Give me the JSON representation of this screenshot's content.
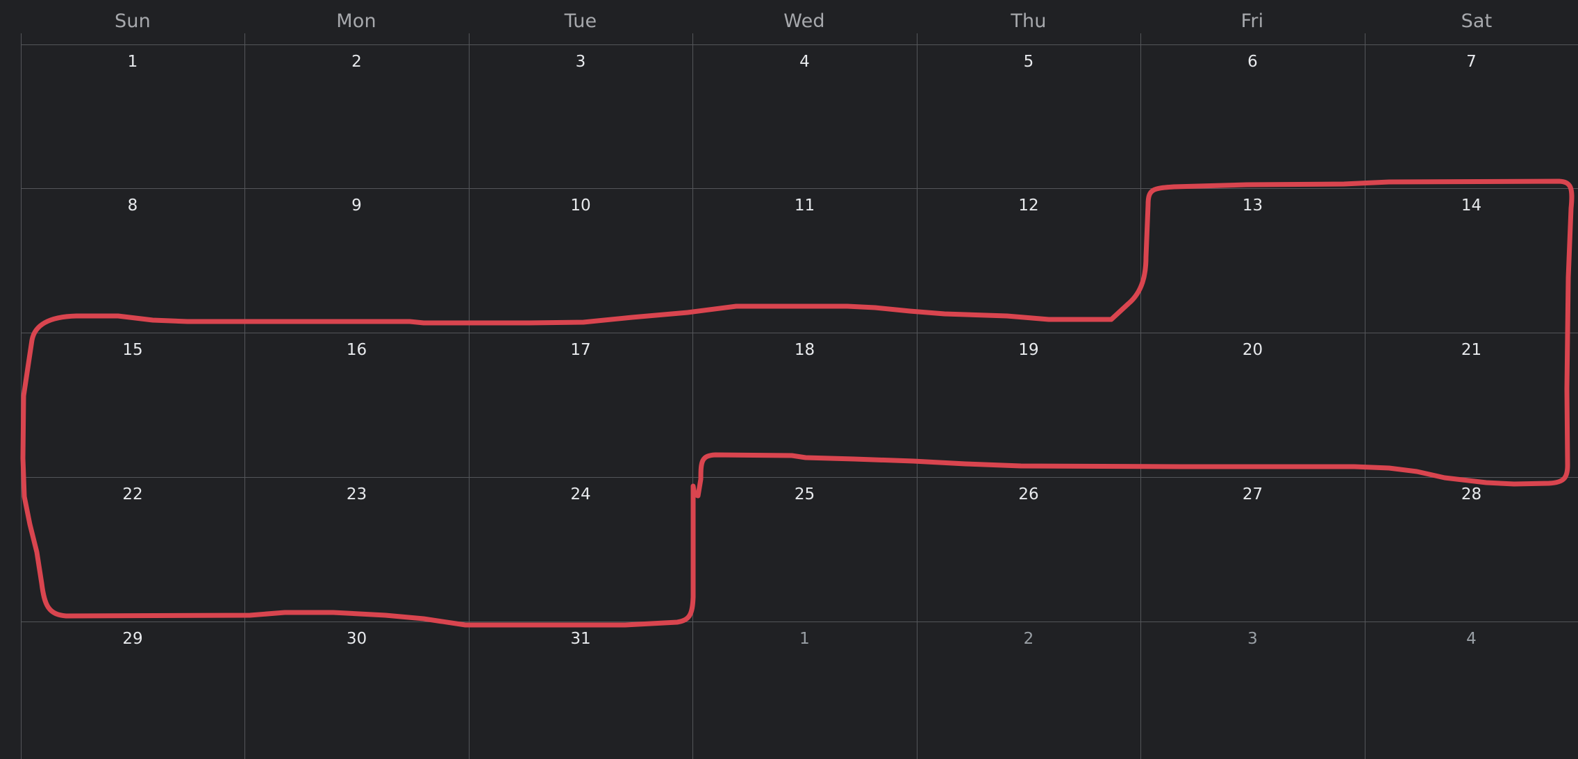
{
  "weekdays": [
    "Sun",
    "Mon",
    "Tue",
    "Wed",
    "Thu",
    "Fri",
    "Sat"
  ],
  "weeks": [
    [
      {
        "day": "1"
      },
      {
        "day": "2"
      },
      {
        "day": "3"
      },
      {
        "day": "4"
      },
      {
        "day": "5"
      },
      {
        "day": "6"
      },
      {
        "day": "7"
      }
    ],
    [
      {
        "day": "8"
      },
      {
        "day": "9"
      },
      {
        "day": "10"
      },
      {
        "day": "11"
      },
      {
        "day": "12"
      },
      {
        "day": "13"
      },
      {
        "day": "14"
      }
    ],
    [
      {
        "day": "15"
      },
      {
        "day": "16"
      },
      {
        "day": "17"
      },
      {
        "day": "18"
      },
      {
        "day": "19"
      },
      {
        "day": "20"
      },
      {
        "day": "21"
      }
    ],
    [
      {
        "day": "22"
      },
      {
        "day": "23"
      },
      {
        "day": "24"
      },
      {
        "day": "25"
      },
      {
        "day": "26"
      },
      {
        "day": "27"
      },
      {
        "day": "28"
      }
    ],
    [
      {
        "day": "29"
      },
      {
        "day": "30"
      },
      {
        "day": "31"
      },
      {
        "day": "1",
        "other_month": true
      },
      {
        "day": "2",
        "other_month": true
      },
      {
        "day": "3",
        "other_month": true
      },
      {
        "day": "4",
        "other_month": true
      }
    ]
  ],
  "annotation": {
    "color": "#d9454f"
  },
  "colors": {
    "background": "#202124",
    "gridline": "#54565a",
    "weekday_text": "#a7a9ad",
    "day_text": "#e8eaed",
    "other_month_text": "#9aa0a6"
  }
}
